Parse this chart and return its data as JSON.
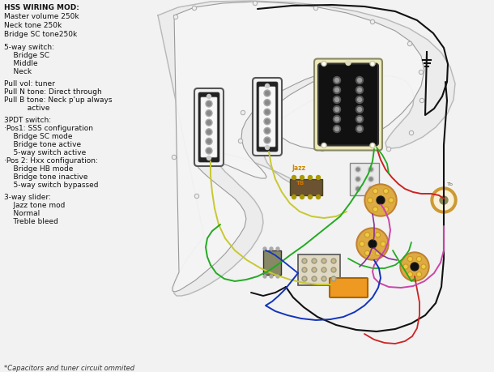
{
  "bg_color": "#f2f2f2",
  "title_lines": [
    "HSS WIRING MOD:",
    "Master volume 250k",
    "Neck tone 250k",
    "Bridge SC tone250k"
  ],
  "switch_lines": [
    "5-way switch:",
    "    Bridge SC",
    "    Middle",
    "    Neck"
  ],
  "pull_lines": [
    "Pull vol: tuner",
    "Pull N tone: Direct through",
    "Pull B tone: Neck p'up always",
    "          active"
  ],
  "switch3_lines": [
    "3PDT switch:",
    "·Pos1: SSS configuration",
    "    Bridge SC mode",
    "    Bridge tone active",
    "    5-way switch active",
    "·Pos 2: Hxx configuration:",
    "    Bridge HB mode",
    "    Bridge tone inactive",
    "    5-way switch bypassed"
  ],
  "slider_lines": [
    "3-way slider:",
    "    Jazz tone mod",
    "    Normal",
    "    Treble bleed"
  ],
  "footer": "*Capacitors and tuner circuit ommited",
  "body_pts_x": [
    310,
    330,
    355,
    380,
    405,
    430,
    455,
    480,
    505,
    525,
    542,
    555,
    562,
    565,
    564,
    560,
    552,
    542,
    530,
    518,
    506,
    496,
    488,
    482,
    478,
    476,
    478,
    482,
    488,
    494,
    500,
    505,
    508,
    508,
    506,
    502,
    496,
    488,
    478,
    466,
    452,
    436,
    420,
    404,
    388,
    374,
    362,
    352,
    344,
    338,
    334,
    332,
    332,
    334,
    338,
    344,
    350,
    356,
    360,
    362,
    360,
    356,
    350,
    342,
    334,
    326,
    318,
    310,
    302,
    294,
    286,
    278,
    270,
    262,
    255,
    248,
    244,
    240,
    238,
    237,
    236,
    236,
    237,
    238,
    240,
    243,
    247,
    252,
    258,
    265,
    272,
    278,
    283,
    287,
    289,
    290,
    290,
    288,
    285,
    281,
    276,
    270,
    264,
    258,
    252,
    248,
    244,
    242,
    240,
    240,
    241,
    244,
    248,
    254,
    260,
    268,
    276,
    284,
    292,
    300,
    308,
    315,
    310
  ],
  "body_pts_y": [
    22,
    16,
    12,
    9,
    8,
    8,
    10,
    14,
    20,
    28,
    38,
    50,
    64,
    80,
    96,
    112,
    126,
    140,
    152,
    162,
    170,
    176,
    180,
    182,
    182,
    180,
    176,
    170,
    164,
    158,
    152,
    146,
    140,
    134,
    128,
    122,
    116,
    111,
    107,
    104,
    102,
    102,
    103,
    106,
    110,
    116,
    122,
    129,
    137,
    145,
    153,
    161,
    169,
    177,
    185,
    193,
    200,
    207,
    213,
    218,
    222,
    225,
    227,
    228,
    228,
    227,
    225,
    222,
    220,
    218,
    217,
    217,
    218,
    220,
    222,
    225,
    228,
    232,
    236,
    240,
    244,
    249,
    254,
    259,
    264,
    270,
    276,
    282,
    288,
    294,
    300,
    305,
    310,
    314,
    318,
    320,
    322,
    324,
    326,
    327,
    328,
    328,
    327,
    326,
    324,
    320,
    316,
    310,
    304,
    296,
    288,
    278,
    268,
    258,
    248,
    238,
    230,
    222,
    215,
    210,
    206,
    204,
    22
  ],
  "wire_colors": {
    "black": "#111111",
    "green": "#22aa22",
    "yellow": "#c8c830",
    "red": "#cc2222",
    "pink": "#cc44aa",
    "blue_dark": "#1133bb",
    "orange": "#dd8800",
    "white": "#ffffff",
    "purple": "#883399"
  }
}
